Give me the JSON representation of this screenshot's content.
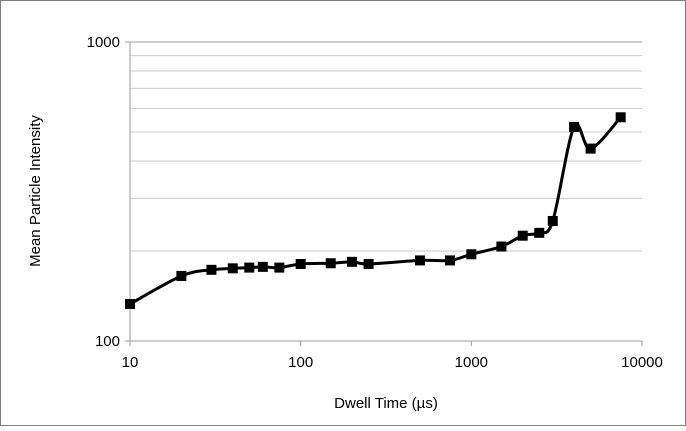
{
  "chart_data": {
    "type": "line",
    "title": "",
    "xlabel": "Dwell Time (µs)",
    "ylabel": "Mean Particle Intensity",
    "x_scale": "log",
    "y_scale": "log",
    "xlim": [
      10,
      10000
    ],
    "ylim": [
      100,
      1000
    ],
    "x_ticks": [
      "10",
      "100",
      "1000",
      "10000"
    ],
    "y_ticks": [
      "100",
      "1000"
    ],
    "grid": "horizontal minor (log)",
    "legend": "none",
    "series": [
      {
        "marker": "square",
        "smooth": true,
        "color": "#000000",
        "x": [
          10,
          20,
          30,
          40,
          50,
          60,
          75,
          100,
          150,
          200,
          250,
          500,
          750,
          1000,
          1500,
          2000,
          2500,
          3000,
          4000,
          5000,
          7500
        ],
        "y": [
          133,
          165,
          173,
          175,
          176,
          177,
          176,
          181,
          182,
          184,
          181,
          186,
          186,
          195,
          207,
          225,
          230,
          252,
          520,
          440,
          560
        ]
      }
    ]
  }
}
